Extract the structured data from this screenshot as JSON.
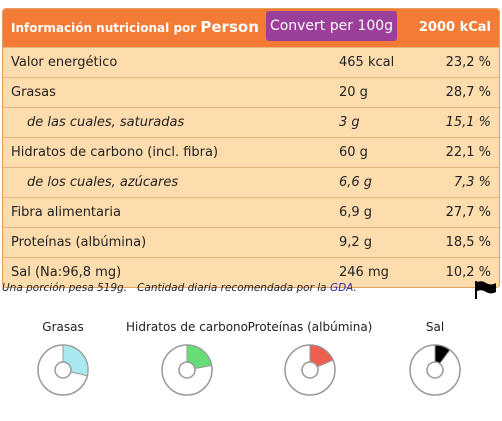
{
  "header": {
    "title": "Información nutricional por",
    "title_person": "Person",
    "button": "Convert per 100g",
    "reference": "2000 kCal"
  },
  "rows": [
    {
      "label": "Valor energético",
      "amount": "465 kcal",
      "percent": "23,2 %",
      "italic": false
    },
    {
      "label": "Grasas",
      "amount": "20 g",
      "percent": "28,7 %",
      "italic": false
    },
    {
      "label": "de las cuales, saturadas",
      "amount": "3 g",
      "percent": "15,1 %",
      "italic": true
    },
    {
      "label": "Hidratos de carbono (incl. fibra)",
      "amount": "60 g",
      "percent": "22,1 %",
      "italic": false
    },
    {
      "label": "de los cuales, azúcares",
      "amount": "6,6 g",
      "percent": "7,3 %",
      "italic": true
    },
    {
      "label": "Fibra alimentaria",
      "amount": "6,9 g",
      "percent": "27,7 %",
      "italic": false
    },
    {
      "label": "Proteínas (albúmina)",
      "amount": "9,2 g",
      "percent": "18,5 %",
      "italic": false
    },
    {
      "label": "Sal (Na:96,8 mg)",
      "amount": "246 mg",
      "percent": "10,2 %",
      "italic": false
    }
  ],
  "footer": {
    "portion": "Una porción pesa 519g.",
    "text": "Cantidad diaria recomendada por la",
    "link": "GDA",
    "end": "."
  },
  "gauge_max": 100,
  "gauges": [
    {
      "label": "Grasas",
      "value": 28.7,
      "color": "#a9e9ee"
    },
    {
      "label": "Hidratos de carbono",
      "value": 22.1,
      "color": "#66dd77"
    },
    {
      "label": "Proteínas (albúmina)",
      "value": 18.5,
      "color": "#ef5f4f"
    },
    {
      "label": "Sal",
      "value": 10.2,
      "color": "#000000"
    }
  ]
}
